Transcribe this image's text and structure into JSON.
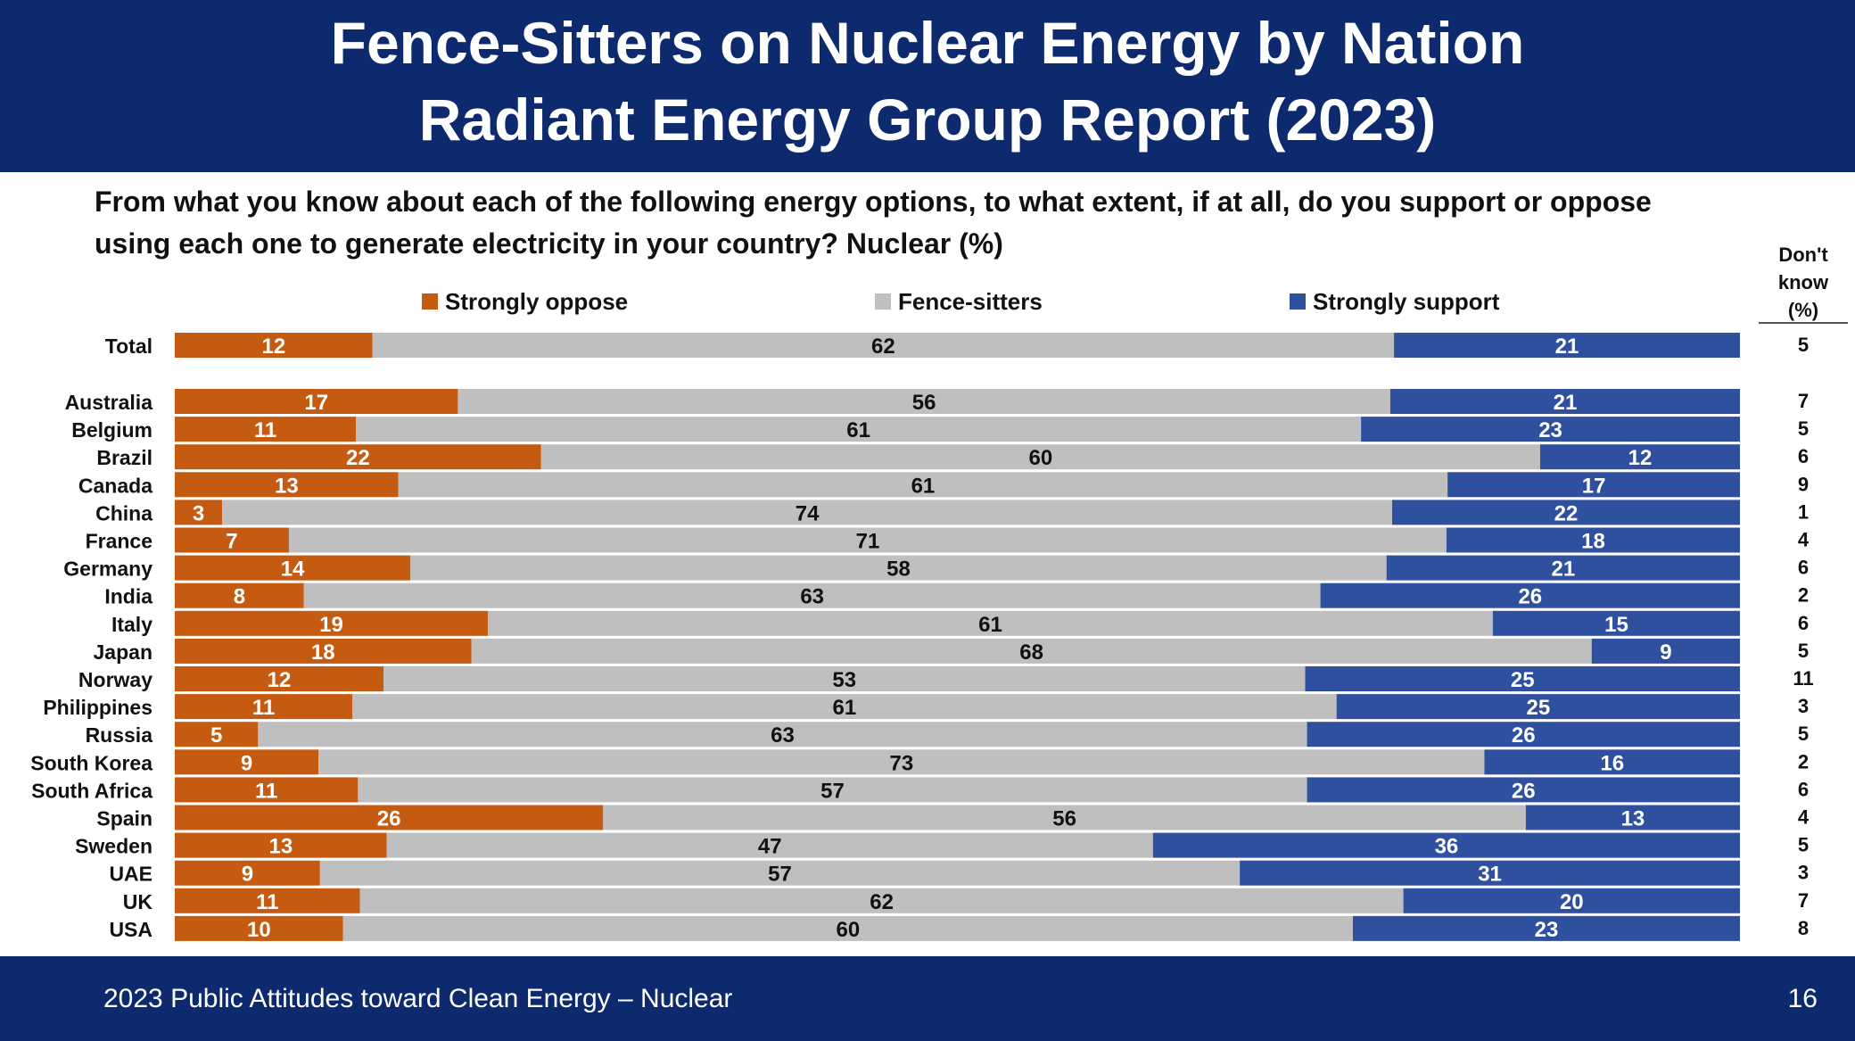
{
  "title_line1": "Fence-Sitters on Nuclear Energy by Nation",
  "title_line2": "Radiant Energy Group Report (2023)",
  "question": "From what you know about each of the following energy options, to what extent, if at all, do you support or oppose using each one to generate electricity in your country? Nuclear (%)",
  "dont_know_header": [
    "Don't",
    "know",
    "(%)"
  ],
  "footer_source": "2023 Public Attitudes toward Clean Energy – Nuclear",
  "page_number": "16",
  "colors": {
    "oppose": "#c55a11",
    "fence": "#bfbfbf",
    "support": "#2f4f9f",
    "header_bg": "#0d2a6e"
  },
  "chart_data": {
    "type": "bar",
    "orientation": "horizontal",
    "stacked": true,
    "legend_position": "top",
    "categories": [
      "Total",
      "Australia",
      "Belgium",
      "Brazil",
      "Canada",
      "China",
      "France",
      "Germany",
      "India",
      "Italy",
      "Japan",
      "Norway",
      "Philippines",
      "Russia",
      "South Korea",
      "South Africa",
      "Spain",
      "Sweden",
      "UAE",
      "UK",
      "USA"
    ],
    "series": [
      {
        "name": "Strongly oppose",
        "values": [
          12,
          17,
          11,
          22,
          13,
          3,
          7,
          14,
          8,
          19,
          18,
          12,
          11,
          5,
          9,
          11,
          26,
          13,
          9,
          11,
          10
        ]
      },
      {
        "name": "Fence-sitters",
        "values": [
          62,
          56,
          61,
          60,
          61,
          74,
          71,
          58,
          63,
          61,
          68,
          53,
          61,
          63,
          73,
          57,
          56,
          47,
          57,
          62,
          60
        ]
      },
      {
        "name": "Strongly support",
        "values": [
          21,
          21,
          23,
          12,
          17,
          22,
          18,
          21,
          26,
          15,
          9,
          25,
          25,
          26,
          16,
          26,
          13,
          36,
          31,
          20,
          23
        ]
      }
    ],
    "dont_know": [
      5,
      7,
      5,
      6,
      9,
      1,
      4,
      6,
      2,
      6,
      5,
      11,
      3,
      5,
      2,
      6,
      4,
      5,
      3,
      7,
      8
    ],
    "xlim": [
      0,
      100
    ]
  }
}
